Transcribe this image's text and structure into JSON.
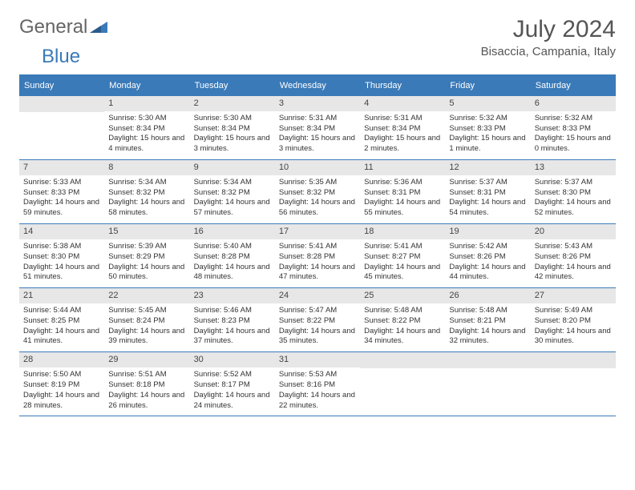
{
  "logo": {
    "part1": "General",
    "part2": "Blue"
  },
  "title": "July 2024",
  "subtitle": "Bisaccia, Campania, Italy",
  "header_bg": "#3a7ab8",
  "daynum_bg": "#e7e7e7",
  "background": "#ffffff",
  "text_color": "#333333",
  "day_headers": [
    "Sunday",
    "Monday",
    "Tuesday",
    "Wednesday",
    "Thursday",
    "Friday",
    "Saturday"
  ],
  "weeks": [
    [
      {
        "day": "",
        "lines": []
      },
      {
        "day": "1",
        "lines": [
          "Sunrise: 5:30 AM",
          "Sunset: 8:34 PM",
          "Daylight: 15 hours and 4 minutes."
        ]
      },
      {
        "day": "2",
        "lines": [
          "Sunrise: 5:30 AM",
          "Sunset: 8:34 PM",
          "Daylight: 15 hours and 3 minutes."
        ]
      },
      {
        "day": "3",
        "lines": [
          "Sunrise: 5:31 AM",
          "Sunset: 8:34 PM",
          "Daylight: 15 hours and 3 minutes."
        ]
      },
      {
        "day": "4",
        "lines": [
          "Sunrise: 5:31 AM",
          "Sunset: 8:34 PM",
          "Daylight: 15 hours and 2 minutes."
        ]
      },
      {
        "day": "5",
        "lines": [
          "Sunrise: 5:32 AM",
          "Sunset: 8:33 PM",
          "Daylight: 15 hours and 1 minute."
        ]
      },
      {
        "day": "6",
        "lines": [
          "Sunrise: 5:32 AM",
          "Sunset: 8:33 PM",
          "Daylight: 15 hours and 0 minutes."
        ]
      }
    ],
    [
      {
        "day": "7",
        "lines": [
          "Sunrise: 5:33 AM",
          "Sunset: 8:33 PM",
          "Daylight: 14 hours and 59 minutes."
        ]
      },
      {
        "day": "8",
        "lines": [
          "Sunrise: 5:34 AM",
          "Sunset: 8:32 PM",
          "Daylight: 14 hours and 58 minutes."
        ]
      },
      {
        "day": "9",
        "lines": [
          "Sunrise: 5:34 AM",
          "Sunset: 8:32 PM",
          "Daylight: 14 hours and 57 minutes."
        ]
      },
      {
        "day": "10",
        "lines": [
          "Sunrise: 5:35 AM",
          "Sunset: 8:32 PM",
          "Daylight: 14 hours and 56 minutes."
        ]
      },
      {
        "day": "11",
        "lines": [
          "Sunrise: 5:36 AM",
          "Sunset: 8:31 PM",
          "Daylight: 14 hours and 55 minutes."
        ]
      },
      {
        "day": "12",
        "lines": [
          "Sunrise: 5:37 AM",
          "Sunset: 8:31 PM",
          "Daylight: 14 hours and 54 minutes."
        ]
      },
      {
        "day": "13",
        "lines": [
          "Sunrise: 5:37 AM",
          "Sunset: 8:30 PM",
          "Daylight: 14 hours and 52 minutes."
        ]
      }
    ],
    [
      {
        "day": "14",
        "lines": [
          "Sunrise: 5:38 AM",
          "Sunset: 8:30 PM",
          "Daylight: 14 hours and 51 minutes."
        ]
      },
      {
        "day": "15",
        "lines": [
          "Sunrise: 5:39 AM",
          "Sunset: 8:29 PM",
          "Daylight: 14 hours and 50 minutes."
        ]
      },
      {
        "day": "16",
        "lines": [
          "Sunrise: 5:40 AM",
          "Sunset: 8:28 PM",
          "Daylight: 14 hours and 48 minutes."
        ]
      },
      {
        "day": "17",
        "lines": [
          "Sunrise: 5:41 AM",
          "Sunset: 8:28 PM",
          "Daylight: 14 hours and 47 minutes."
        ]
      },
      {
        "day": "18",
        "lines": [
          "Sunrise: 5:41 AM",
          "Sunset: 8:27 PM",
          "Daylight: 14 hours and 45 minutes."
        ]
      },
      {
        "day": "19",
        "lines": [
          "Sunrise: 5:42 AM",
          "Sunset: 8:26 PM",
          "Daylight: 14 hours and 44 minutes."
        ]
      },
      {
        "day": "20",
        "lines": [
          "Sunrise: 5:43 AM",
          "Sunset: 8:26 PM",
          "Daylight: 14 hours and 42 minutes."
        ]
      }
    ],
    [
      {
        "day": "21",
        "lines": [
          "Sunrise: 5:44 AM",
          "Sunset: 8:25 PM",
          "Daylight: 14 hours and 41 minutes."
        ]
      },
      {
        "day": "22",
        "lines": [
          "Sunrise: 5:45 AM",
          "Sunset: 8:24 PM",
          "Daylight: 14 hours and 39 minutes."
        ]
      },
      {
        "day": "23",
        "lines": [
          "Sunrise: 5:46 AM",
          "Sunset: 8:23 PM",
          "Daylight: 14 hours and 37 minutes."
        ]
      },
      {
        "day": "24",
        "lines": [
          "Sunrise: 5:47 AM",
          "Sunset: 8:22 PM",
          "Daylight: 14 hours and 35 minutes."
        ]
      },
      {
        "day": "25",
        "lines": [
          "Sunrise: 5:48 AM",
          "Sunset: 8:22 PM",
          "Daylight: 14 hours and 34 minutes."
        ]
      },
      {
        "day": "26",
        "lines": [
          "Sunrise: 5:48 AM",
          "Sunset: 8:21 PM",
          "Daylight: 14 hours and 32 minutes."
        ]
      },
      {
        "day": "27",
        "lines": [
          "Sunrise: 5:49 AM",
          "Sunset: 8:20 PM",
          "Daylight: 14 hours and 30 minutes."
        ]
      }
    ],
    [
      {
        "day": "28",
        "lines": [
          "Sunrise: 5:50 AM",
          "Sunset: 8:19 PM",
          "Daylight: 14 hours and 28 minutes."
        ]
      },
      {
        "day": "29",
        "lines": [
          "Sunrise: 5:51 AM",
          "Sunset: 8:18 PM",
          "Daylight: 14 hours and 26 minutes."
        ]
      },
      {
        "day": "30",
        "lines": [
          "Sunrise: 5:52 AM",
          "Sunset: 8:17 PM",
          "Daylight: 14 hours and 24 minutes."
        ]
      },
      {
        "day": "31",
        "lines": [
          "Sunrise: 5:53 AM",
          "Sunset: 8:16 PM",
          "Daylight: 14 hours and 22 minutes."
        ]
      },
      {
        "day": "",
        "lines": []
      },
      {
        "day": "",
        "lines": []
      },
      {
        "day": "",
        "lines": []
      }
    ]
  ]
}
